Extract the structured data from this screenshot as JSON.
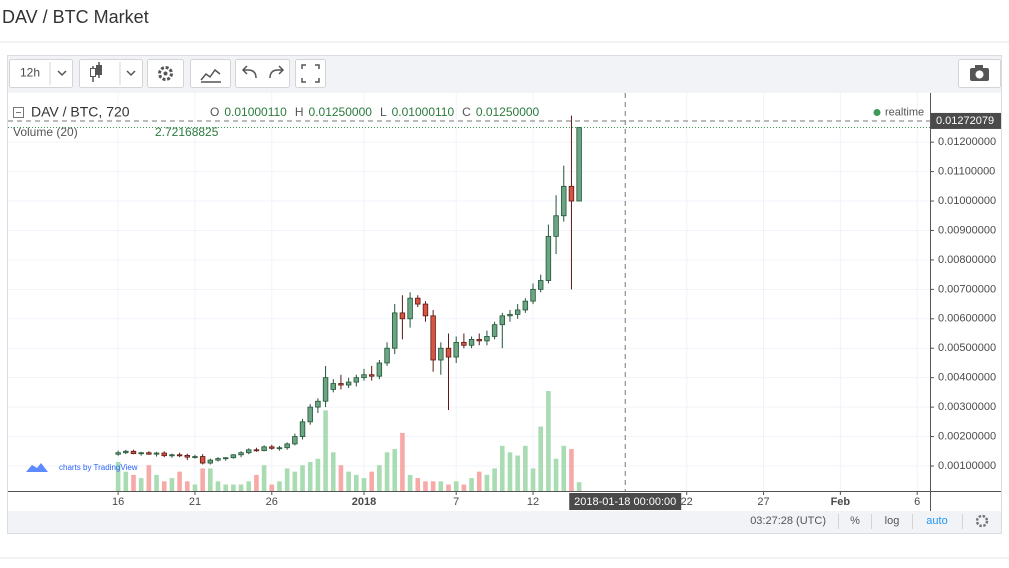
{
  "page_title": "DAV / BTC Market",
  "toolbar": {
    "interval": "12h"
  },
  "chart_data": {
    "type": "candlestick",
    "symbol": "DAV / BTC, 720",
    "ohlc_legend": {
      "labels": [
        "O",
        "H",
        "L",
        "C"
      ],
      "values": [
        0.0100011,
        0.0125,
        0.0100011,
        0.0125
      ],
      "value_labels": [
        "0.01000110",
        "0.01250000",
        "0.01000110",
        "0.01250000"
      ]
    },
    "status": "realtime",
    "volume_title": "Volume (20)",
    "volume_value": {
      "value": 2.72168825,
      "label": "2.72168825"
    },
    "attribution": "charts by TradingView",
    "x": [
      "2017-12-16 00:00",
      "2017-12-16 12:00",
      "2017-12-17 00:00",
      "2017-12-17 12:00",
      "2017-12-18 00:00",
      "2017-12-18 12:00",
      "2017-12-19 00:00",
      "2017-12-19 12:00",
      "2017-12-20 00:00",
      "2017-12-20 12:00",
      "2017-12-21 00:00",
      "2017-12-21 12:00",
      "2017-12-22 00:00",
      "2017-12-22 12:00",
      "2017-12-23 00:00",
      "2017-12-23 12:00",
      "2017-12-24 00:00",
      "2017-12-24 12:00",
      "2017-12-25 00:00",
      "2017-12-25 12:00",
      "2017-12-26 00:00",
      "2017-12-26 12:00",
      "2017-12-27 00:00",
      "2017-12-27 12:00",
      "2017-12-28 00:00",
      "2017-12-28 12:00",
      "2017-12-29 00:00",
      "2017-12-29 12:00",
      "2017-12-30 00:00",
      "2017-12-30 12:00",
      "2017-12-31 00:00",
      "2017-12-31 12:00",
      "2018-01-01 00:00",
      "2018-01-01 12:00",
      "2018-01-02 00:00",
      "2018-01-02 12:00",
      "2018-01-03 00:00",
      "2018-01-03 12:00",
      "2018-01-04 00:00",
      "2018-01-04 12:00",
      "2018-01-05 00:00",
      "2018-01-05 12:00",
      "2018-01-06 00:00",
      "2018-01-06 12:00",
      "2018-01-07 00:00",
      "2018-01-07 12:00",
      "2018-01-08 00:00",
      "2018-01-08 12:00",
      "2018-01-09 00:00",
      "2018-01-09 12:00",
      "2018-01-10 00:00",
      "2018-01-10 12:00",
      "2018-01-11 00:00",
      "2018-01-11 12:00",
      "2018-01-12 00:00",
      "2018-01-12 12:00",
      "2018-01-13 00:00",
      "2018-01-13 12:00",
      "2018-01-14 00:00",
      "2018-01-14 12:00",
      "2018-01-15 00:00"
    ],
    "open": [
      0.0014,
      0.00145,
      0.0015,
      0.00142,
      0.00145,
      0.0014,
      0.00144,
      0.00135,
      0.00138,
      0.00136,
      0.0013,
      0.00132,
      0.0011,
      0.0012,
      0.00125,
      0.00128,
      0.00138,
      0.00145,
      0.00155,
      0.00152,
      0.00165,
      0.0016,
      0.00162,
      0.00175,
      0.002,
      0.0025,
      0.003,
      0.0032,
      0.0036,
      0.0038,
      0.00375,
      0.00385,
      0.004,
      0.0041,
      0.00405,
      0.0045,
      0.005,
      0.0062,
      0.006,
      0.0067,
      0.0065,
      0.0061,
      0.0046,
      0.005,
      0.0047,
      0.0052,
      0.0051,
      0.0053,
      0.00525,
      0.0054,
      0.0058,
      0.0061,
      0.00615,
      0.0063,
      0.0066,
      0.007,
      0.0073,
      0.0088,
      0.0095,
      0.0105,
      0.0100011
    ],
    "high": [
      0.00152,
      0.00155,
      0.00155,
      0.00148,
      0.0015,
      0.00148,
      0.0015,
      0.00142,
      0.00145,
      0.00142,
      0.00138,
      0.0014,
      0.00125,
      0.0013,
      0.0013,
      0.0014,
      0.0015,
      0.0016,
      0.00162,
      0.0017,
      0.00172,
      0.00168,
      0.0018,
      0.0021,
      0.0026,
      0.0031,
      0.0033,
      0.0044,
      0.00395,
      0.0041,
      0.004,
      0.0041,
      0.0043,
      0.0044,
      0.0046,
      0.0052,
      0.0065,
      0.0068,
      0.0069,
      0.0068,
      0.0066,
      0.0063,
      0.0052,
      0.0055,
      0.0054,
      0.0055,
      0.0054,
      0.0055,
      0.0056,
      0.0059,
      0.0062,
      0.0063,
      0.0065,
      0.0067,
      0.0072,
      0.0075,
      0.0092,
      0.0102,
      0.0112,
      0.0129,
      0.0125
    ],
    "low": [
      0.00135,
      0.0014,
      0.0014,
      0.00135,
      0.00138,
      0.00132,
      0.0013,
      0.00128,
      0.0013,
      0.0012,
      0.00125,
      0.00105,
      0.00105,
      0.00115,
      0.00118,
      0.00125,
      0.0013,
      0.0014,
      0.00148,
      0.0015,
      0.00155,
      0.00152,
      0.00155,
      0.0017,
      0.0019,
      0.0024,
      0.0028,
      0.003,
      0.0035,
      0.0036,
      0.00365,
      0.0037,
      0.0039,
      0.0039,
      0.00395,
      0.0044,
      0.0048,
      0.0053,
      0.0057,
      0.0064,
      0.0059,
      0.0042,
      0.0041,
      0.0029,
      0.0045,
      0.005,
      0.005,
      0.0051,
      0.0051,
      0.0053,
      0.005,
      0.0059,
      0.006,
      0.0062,
      0.0065,
      0.0069,
      0.0072,
      0.0082,
      0.0093,
      0.007,
      0.0100011
    ],
    "close": [
      0.00145,
      0.0015,
      0.00142,
      0.00145,
      0.0014,
      0.00144,
      0.00135,
      0.00138,
      0.00136,
      0.0013,
      0.00132,
      0.0011,
      0.0012,
      0.00125,
      0.00128,
      0.00138,
      0.00145,
      0.00155,
      0.00152,
      0.00165,
      0.0016,
      0.00162,
      0.00175,
      0.002,
      0.0025,
      0.003,
      0.0032,
      0.004,
      0.0038,
      0.00375,
      0.00385,
      0.004,
      0.0041,
      0.00405,
      0.0045,
      0.005,
      0.0062,
      0.006,
      0.0067,
      0.0065,
      0.0061,
      0.0046,
      0.005,
      0.0047,
      0.0052,
      0.0051,
      0.0053,
      0.00525,
      0.0054,
      0.0058,
      0.0061,
      0.00615,
      0.0063,
      0.0066,
      0.007,
      0.0073,
      0.0088,
      0.0095,
      0.0105,
      0.01,
      0.0125
    ],
    "volume": [
      9,
      6,
      5,
      4,
      8,
      5,
      3,
      4,
      6,
      3,
      2,
      7,
      7,
      3,
      2,
      2,
      2,
      3,
      5,
      8,
      2,
      3,
      7,
      6,
      8,
      9,
      10,
      25,
      12,
      8,
      6,
      5,
      4,
      6,
      8,
      12,
      13,
      18,
      5,
      4,
      3,
      3,
      3,
      2,
      3,
      2,
      4,
      6,
      5,
      7,
      14,
      12,
      11,
      14,
      7,
      20,
      31,
      10,
      14,
      13,
      2.72168825
    ],
    "up_color": "#6ba583",
    "down_color": "#d75442",
    "volume_up_color": "#a9dcb3",
    "volume_down_color": "#f7a9a7",
    "xlim": [
      "2017-12-08 20:00",
      "2018-02-06 20:00"
    ],
    "xticks": [
      {
        "value": "2017-12-16",
        "label": "16"
      },
      {
        "value": "2017-12-21",
        "label": "21"
      },
      {
        "value": "2017-12-26",
        "label": "26"
      },
      {
        "value": "2018-01-01",
        "label": "2018"
      },
      {
        "value": "2018-01-07",
        "label": "7"
      },
      {
        "value": "2018-01-12",
        "label": "12"
      },
      {
        "value": "2018-01-22",
        "label": "22"
      },
      {
        "value": "2018-01-27",
        "label": "27"
      },
      {
        "value": "2018-02-01",
        "label": "Feb"
      },
      {
        "value": "2018-02-06",
        "label": "6"
      }
    ],
    "ylim": [
      0.00015,
      0.01367
    ],
    "yticks": [
      {
        "value": 0.001,
        "label": "0.00100000"
      },
      {
        "value": 0.002,
        "label": "0.00200000"
      },
      {
        "value": 0.003,
        "label": "0.00300000"
      },
      {
        "value": 0.004,
        "label": "0.00400000"
      },
      {
        "value": 0.005,
        "label": "0.00500000"
      },
      {
        "value": 0.006,
        "label": "0.00600000"
      },
      {
        "value": 0.007,
        "label": "0.00700000"
      },
      {
        "value": 0.008,
        "label": "0.00800000"
      },
      {
        "value": 0.009,
        "label": "0.00900000"
      },
      {
        "value": 0.01,
        "label": "0.01000000"
      },
      {
        "value": 0.011,
        "label": "0.01100000"
      },
      {
        "value": 0.012,
        "label": "0.01200000"
      }
    ],
    "grid": true,
    "last_price": 0.01272079,
    "crosshair_label": "2018-01-18 00:00:00",
    "clock": "03:27:28 (UTC)",
    "scale_buttons": [
      "%",
      "log",
      "auto"
    ],
    "log_scale": false
  }
}
